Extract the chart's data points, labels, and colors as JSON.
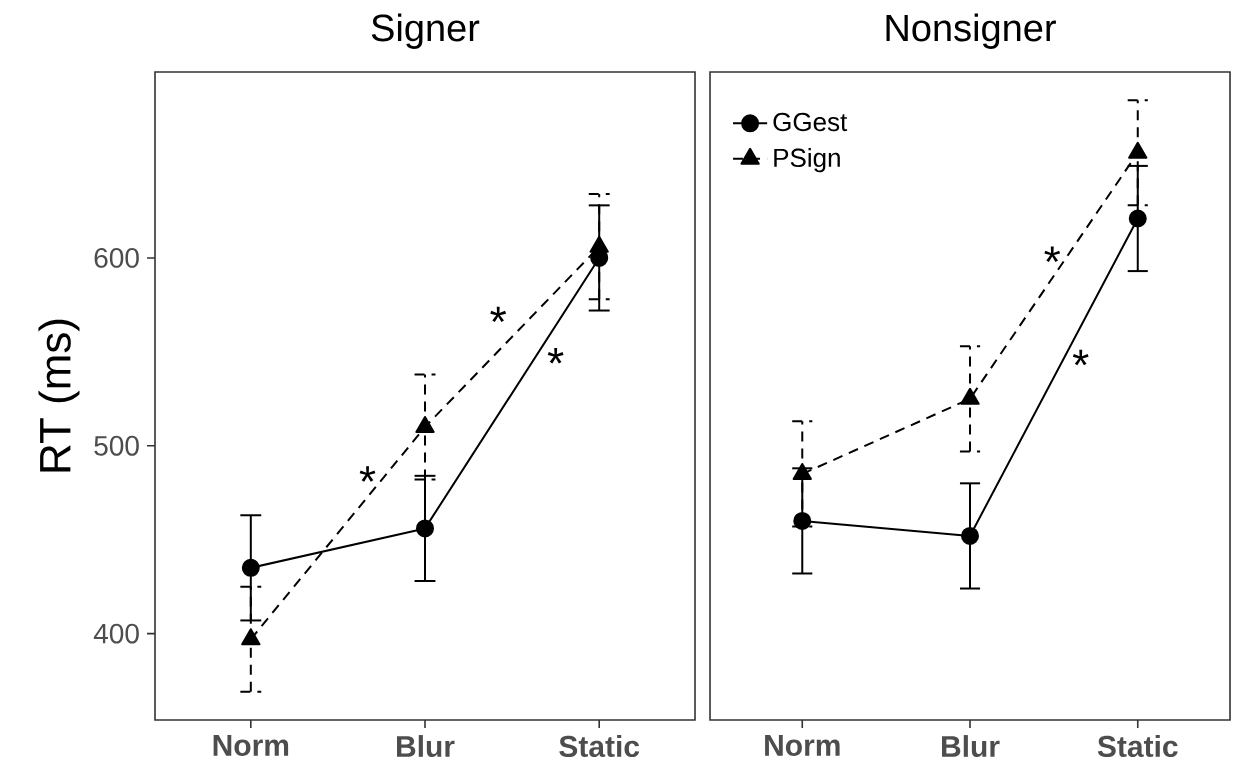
{
  "chart_data": [
    {
      "type": "line",
      "title": "Signer",
      "ylabel": "RT (ms)",
      "categories": [
        "Norm",
        "Blur",
        "Static"
      ],
      "ylim": [
        354,
        699
      ],
      "yticks": [
        400,
        500,
        600
      ],
      "grid": false,
      "series": [
        {
          "color": "#000000",
          "marker": "circle",
          "line_style": "solid",
          "values": [
            435,
            456,
            600
          ],
          "errors": [
            28,
            28,
            28
          ]
        },
        {
          "color": "#000000",
          "marker": "triangle",
          "line_style": "dashed",
          "values": [
            397,
            510,
            606
          ],
          "errors": [
            28,
            28,
            28
          ]
        }
      ],
      "annotations": [
        "*",
        "*",
        "*"
      ]
    },
    {
      "type": "line",
      "title": "Nonsigner",
      "categories": [
        "Norm",
        "Blur",
        "Static"
      ],
      "ylim": [
        354,
        699
      ],
      "tick_labels": "x",
      "grid": false,
      "legend": "top left",
      "series": [
        {
          "name": "GGest",
          "color": "#000000",
          "marker": "circle",
          "line_style": "solid",
          "values": [
            460,
            452,
            621
          ],
          "errors": [
            28,
            28,
            28
          ]
        },
        {
          "name": "PSign",
          "color": "#000000",
          "marker": "triangle",
          "line_style": "dashed",
          "values": [
            485,
            525,
            656
          ],
          "errors": [
            28,
            28,
            28
          ]
        }
      ],
      "annotations": [
        "*",
        "*"
      ]
    }
  ]
}
